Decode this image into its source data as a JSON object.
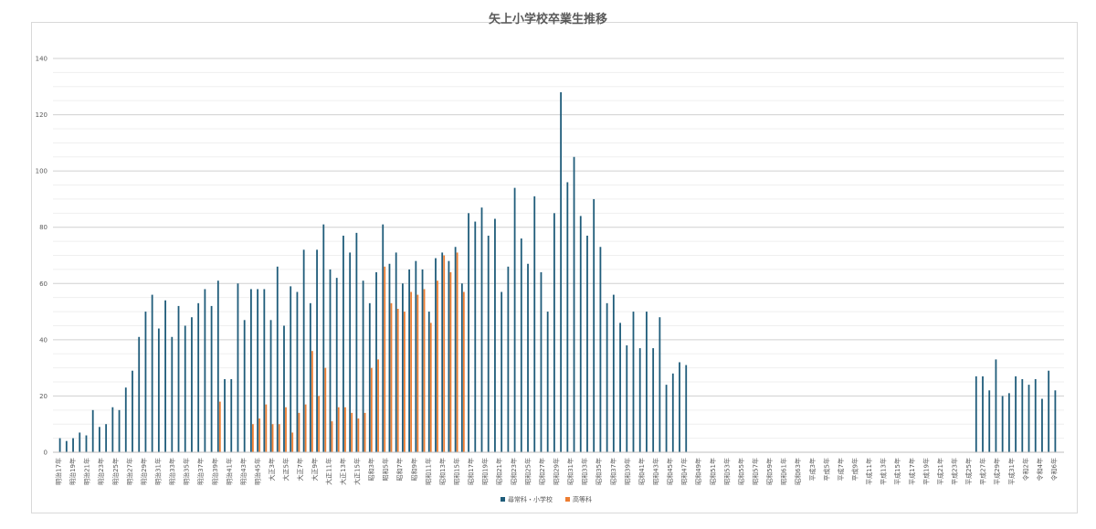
{
  "chart_data": {
    "type": "bar",
    "title": "矢上小学校卒業生推移",
    "ylim": [
      0,
      140
    ],
    "yticks": [
      0,
      20,
      40,
      60,
      80,
      100,
      120,
      140
    ],
    "grid": true,
    "legend_position": "bottom",
    "x_labels_shown": [
      "明治17年",
      "明治19年",
      "明治21年",
      "明治23年",
      "明治25年",
      "明治27年",
      "明治29年",
      "明治31年",
      "明治33年",
      "明治35年",
      "明治37年",
      "明治39年",
      "明治41年",
      "明治43年",
      "明治45年",
      "大正3年",
      "大正5年",
      "大正7年",
      "大正9年",
      "大正11年",
      "大正13年",
      "大正15年",
      "昭和3年",
      "昭和5年",
      "昭和7年",
      "昭和9年",
      "昭和11年",
      "昭和13年",
      "昭和15年",
      "昭和17年",
      "昭和19年",
      "昭和21年",
      "昭和23年",
      "昭和25年",
      "昭和27年",
      "昭和29年",
      "昭和31年",
      "昭和33年",
      "昭和35年",
      "昭和37年",
      "昭和39年",
      "昭和41年",
      "昭和43年",
      "昭和45年",
      "昭和47年",
      "昭和49年",
      "昭和51年",
      "昭和53年",
      "昭和55年",
      "昭和57年",
      "昭和59年",
      "昭和61年",
      "昭和63年",
      "平成3年",
      "平成5年",
      "平成7年",
      "平成9年",
      "平成11年",
      "平成13年",
      "平成15年",
      "平成17年",
      "平成19年",
      "平成21年",
      "平成23年",
      "平成25年",
      "平成27年",
      "平成29年",
      "平成31年",
      "令和2年",
      "令和4年",
      "令和6年"
    ],
    "series": [
      {
        "name": "尋常科・小学校",
        "color": "#1f5c7a",
        "values": [
          5,
          4,
          5,
          7,
          6,
          15,
          9,
          10,
          16,
          15,
          23,
          29,
          41,
          50,
          56,
          44,
          54,
          41,
          52,
          45,
          48,
          53,
          58,
          52,
          61,
          26,
          26,
          60,
          47,
          58,
          58,
          58,
          47,
          66,
          45,
          59,
          57,
          72,
          53,
          72,
          81,
          65,
          62,
          77,
          71,
          78,
          61,
          53,
          64,
          81,
          67,
          71,
          60,
          65,
          68,
          65,
          50,
          69,
          71,
          68,
          73,
          60,
          85,
          82,
          87,
          77,
          83,
          57,
          66,
          94,
          76,
          67,
          91,
          64,
          50,
          85,
          128,
          96,
          105,
          84,
          77,
          90,
          73,
          53,
          56,
          46,
          38,
          50,
          37,
          50,
          37,
          48,
          24,
          28,
          32,
          31,
          0,
          0,
          0,
          0,
          0,
          0,
          0,
          0,
          0,
          0,
          0,
          0,
          0,
          0,
          0,
          0,
          0,
          0,
          0,
          0,
          0,
          0,
          0,
          0,
          0,
          0,
          0,
          0,
          0,
          0,
          0,
          0,
          0,
          0,
          0,
          0,
          0,
          0,
          0,
          0,
          0,
          0,
          0,
          27,
          27,
          22,
          33,
          20,
          21,
          27,
          26,
          24,
          26,
          19,
          29,
          22
        ]
      },
      {
        "name": "高等科",
        "color": "#ed7d31",
        "values": [
          0,
          0,
          0,
          0,
          0,
          0,
          0,
          0,
          0,
          0,
          0,
          0,
          0,
          0,
          0,
          0,
          0,
          0,
          0,
          0,
          0,
          0,
          0,
          0,
          18,
          0,
          0,
          0,
          0,
          10,
          12,
          17,
          10,
          10,
          16,
          7,
          14,
          17,
          36,
          20,
          30,
          11,
          16,
          16,
          14,
          12,
          14,
          30,
          33,
          66,
          53,
          51,
          50,
          57,
          56,
          58,
          46,
          61,
          70,
          64,
          71,
          57,
          0,
          0,
          0,
          0,
          0,
          0,
          0,
          0,
          0,
          0,
          0,
          0,
          0,
          0,
          0,
          0,
          0,
          0,
          0,
          0,
          0,
          0,
          0,
          0,
          0,
          0,
          0,
          0,
          0,
          0,
          0,
          0,
          0,
          0,
          0,
          0,
          0,
          0,
          0,
          0,
          0,
          0,
          0,
          0,
          0,
          0,
          0,
          0,
          0,
          0,
          0,
          0,
          0,
          0,
          0,
          0,
          0,
          0,
          0,
          0,
          0,
          0,
          0,
          0,
          0,
          0,
          0,
          0,
          0,
          0,
          0,
          0,
          0,
          0,
          0,
          0,
          0,
          0,
          0,
          0,
          0,
          0,
          0,
          0,
          0,
          0,
          0,
          0,
          0,
          0,
          0,
          0,
          0
        ]
      }
    ]
  }
}
